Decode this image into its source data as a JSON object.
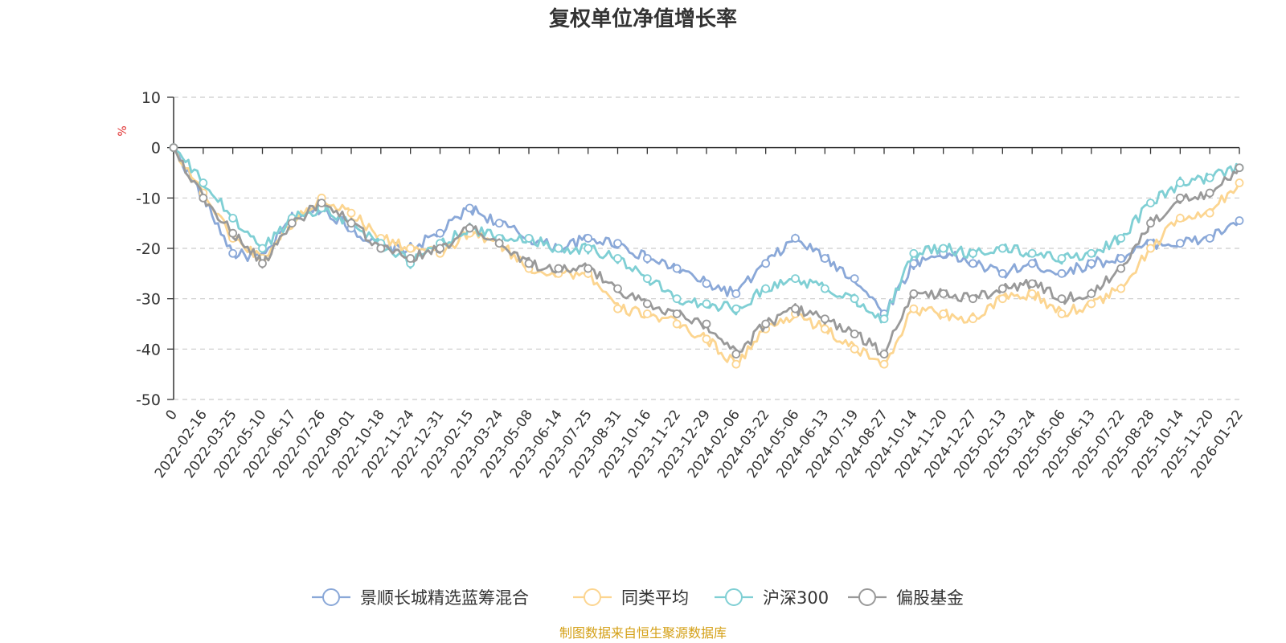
{
  "chart_data": {
    "type": "line",
    "title": "复权单位净值增长率",
    "ylabel": "%",
    "ylim": [
      -50,
      10
    ],
    "yticks": [
      10,
      0,
      -10,
      -20,
      -30,
      -40,
      -50
    ],
    "grid": "horizontal-dashed",
    "x": [
      "0",
      "2022-02-16",
      "2022-03-25",
      "2022-05-10",
      "2022-06-17",
      "2022-07-26",
      "2022-09-01",
      "2022-10-18",
      "2022-11-24",
      "2022-12-31",
      "2023-02-15",
      "2023-03-24",
      "2023-05-08",
      "2023-06-14",
      "2023-07-25",
      "2023-08-31",
      "2023-10-16",
      "2023-11-22",
      "2023-12-29",
      "2024-02-06",
      "2024-03-22",
      "2024-05-06",
      "2024-06-13",
      "2024-07-19",
      "2024-08-27",
      "2024-10-14",
      "2024-11-20",
      "2024-12-27",
      "2025-02-13",
      "2025-03-24",
      "2025-05-06",
      "2025-06-13",
      "2025-07-22",
      "2025-08-28",
      "2025-10-14",
      "2025-11-20",
      "2026-01-22"
    ],
    "series": [
      {
        "name": "景顺长城精选蓝筹混合",
        "color": "#8aa8d8",
        "values": [
          0,
          -10,
          -21,
          -22,
          -14,
          -12,
          -16,
          -20,
          -20,
          -17,
          -12,
          -15,
          -18,
          -20,
          -18,
          -19,
          -22,
          -24,
          -27,
          -29,
          -23,
          -18,
          -22,
          -26,
          -33,
          -23,
          -21,
          -23,
          -25,
          -23,
          -25,
          -23,
          -22,
          -19,
          -19,
          -18,
          -14.5
        ]
      },
      {
        "name": "同类平均",
        "color": "#fcd590",
        "values": [
          0,
          -9,
          -18,
          -22,
          -15,
          -10,
          -13,
          -18,
          -20,
          -21,
          -17,
          -19,
          -24,
          -25,
          -25,
          -32,
          -33,
          -35,
          -38,
          -43,
          -36,
          -33,
          -36,
          -40,
          -43,
          -32,
          -33,
          -34,
          -30,
          -29,
          -33,
          -31,
          -28,
          -20,
          -14,
          -13,
          -7
        ]
      },
      {
        "name": "沪深300",
        "color": "#7fcfd4",
        "values": [
          0,
          -7,
          -14,
          -20,
          -14,
          -12,
          -15,
          -19,
          -23,
          -19,
          -16,
          -18,
          -18,
          -20,
          -20,
          -22,
          -26,
          -30,
          -31,
          -32,
          -28,
          -26,
          -28,
          -30,
          -34,
          -21,
          -20,
          -21,
          -20,
          -21,
          -22,
          -21,
          -18,
          -11,
          -7,
          -6,
          -4
        ]
      },
      {
        "name": "偏股基金",
        "color": "#999999",
        "values": [
          0,
          -10,
          -17,
          -23,
          -15,
          -11,
          -15,
          -20,
          -22,
          -20,
          -16,
          -19,
          -23,
          -24,
          -24,
          -28,
          -31,
          -33,
          -35,
          -41,
          -35,
          -32,
          -34,
          -37,
          -41,
          -29,
          -29,
          -30,
          -28,
          -27,
          -30,
          -29,
          -24,
          -15,
          -10,
          -9,
          -4
        ]
      }
    ]
  },
  "legend": [
    {
      "label": "景顺长城精选蓝筹混合",
      "color": "#8aa8d8"
    },
    {
      "label": "同类平均",
      "color": "#fcd590"
    },
    {
      "label": "沪深300",
      "color": "#7fcfd4"
    },
    {
      "label": "偏股基金",
      "color": "#999999"
    }
  ],
  "source_text": "制图数据来自恒生聚源数据库",
  "colors": {
    "unit": "#e03030",
    "source": "#d4a017",
    "axis": "#333333",
    "grid": "#cccccc"
  }
}
